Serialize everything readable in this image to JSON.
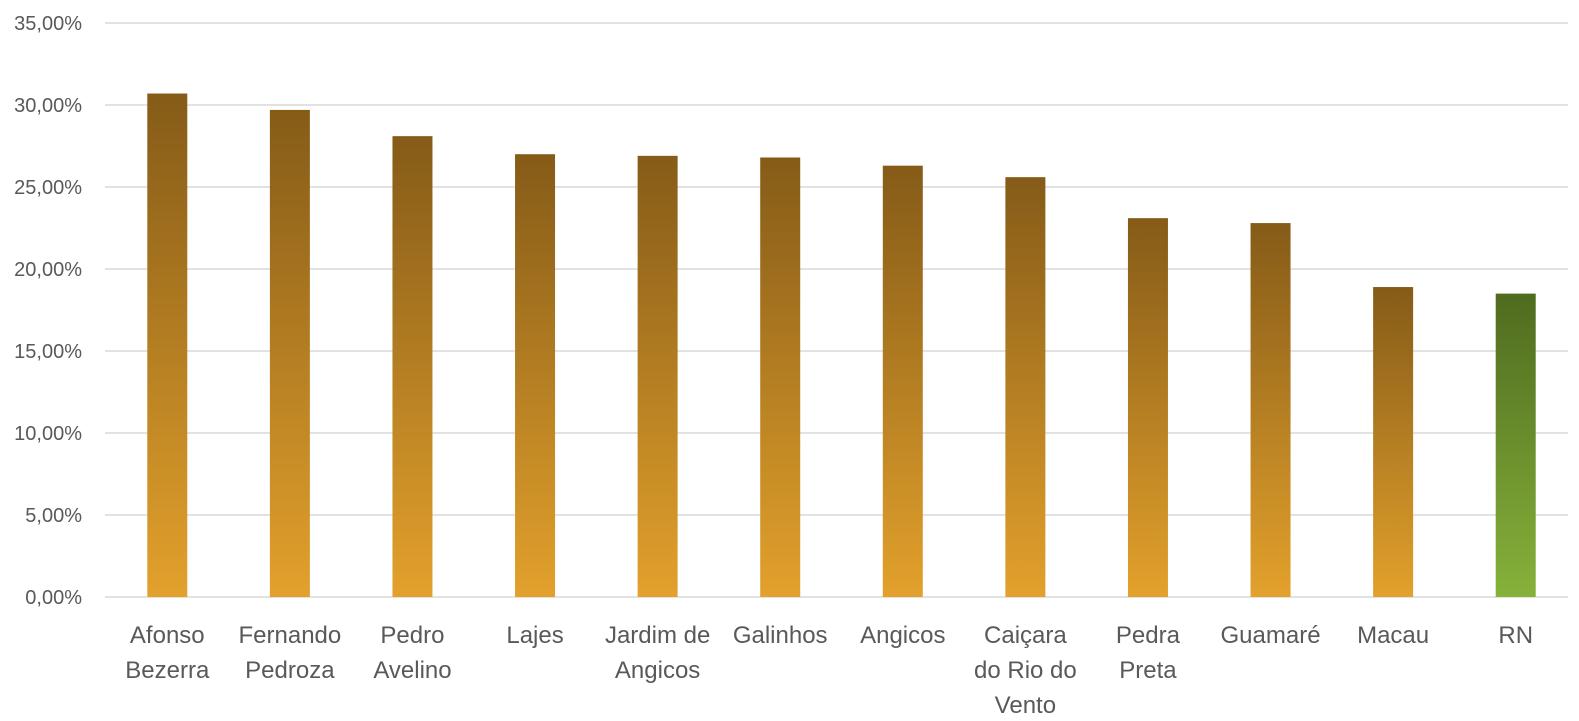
{
  "chart_data": {
    "type": "bar",
    "title": "",
    "xlabel": "",
    "ylabel": "",
    "ylim": [
      0,
      0.35
    ],
    "grid": true,
    "legend": "none",
    "y_ticks": [
      "0,00%",
      "5,00%",
      "10,00%",
      "15,00%",
      "20,00%",
      "25,00%",
      "30,00%",
      "35,00%"
    ],
    "categories": [
      [
        "Afonso",
        "Bezerra"
      ],
      [
        "Fernando",
        "Pedroza"
      ],
      [
        "Pedro",
        "Avelino"
      ],
      [
        "Lajes"
      ],
      [
        "Jardim de",
        "Angicos"
      ],
      [
        "Galinhos"
      ],
      [
        "Angicos"
      ],
      [
        "Caiçara",
        "do Rio do",
        "Vento"
      ],
      [
        "Pedra",
        "Preta"
      ],
      [
        "Guamaré"
      ],
      [
        "Macau"
      ],
      [
        "RN"
      ]
    ],
    "values": [
      0.307,
      0.297,
      0.281,
      0.27,
      0.269,
      0.268,
      0.263,
      0.256,
      0.231,
      0.228,
      0.189,
      0.185
    ],
    "colors": {
      "bar_top": "#855b18",
      "bar_bottom": "#e3a12c",
      "highlight_top": "#4f6b1f",
      "highlight_bottom": "#86b23a",
      "highlight_category": "RN",
      "grid": "#d9d9d9",
      "text": "#595959"
    }
  }
}
